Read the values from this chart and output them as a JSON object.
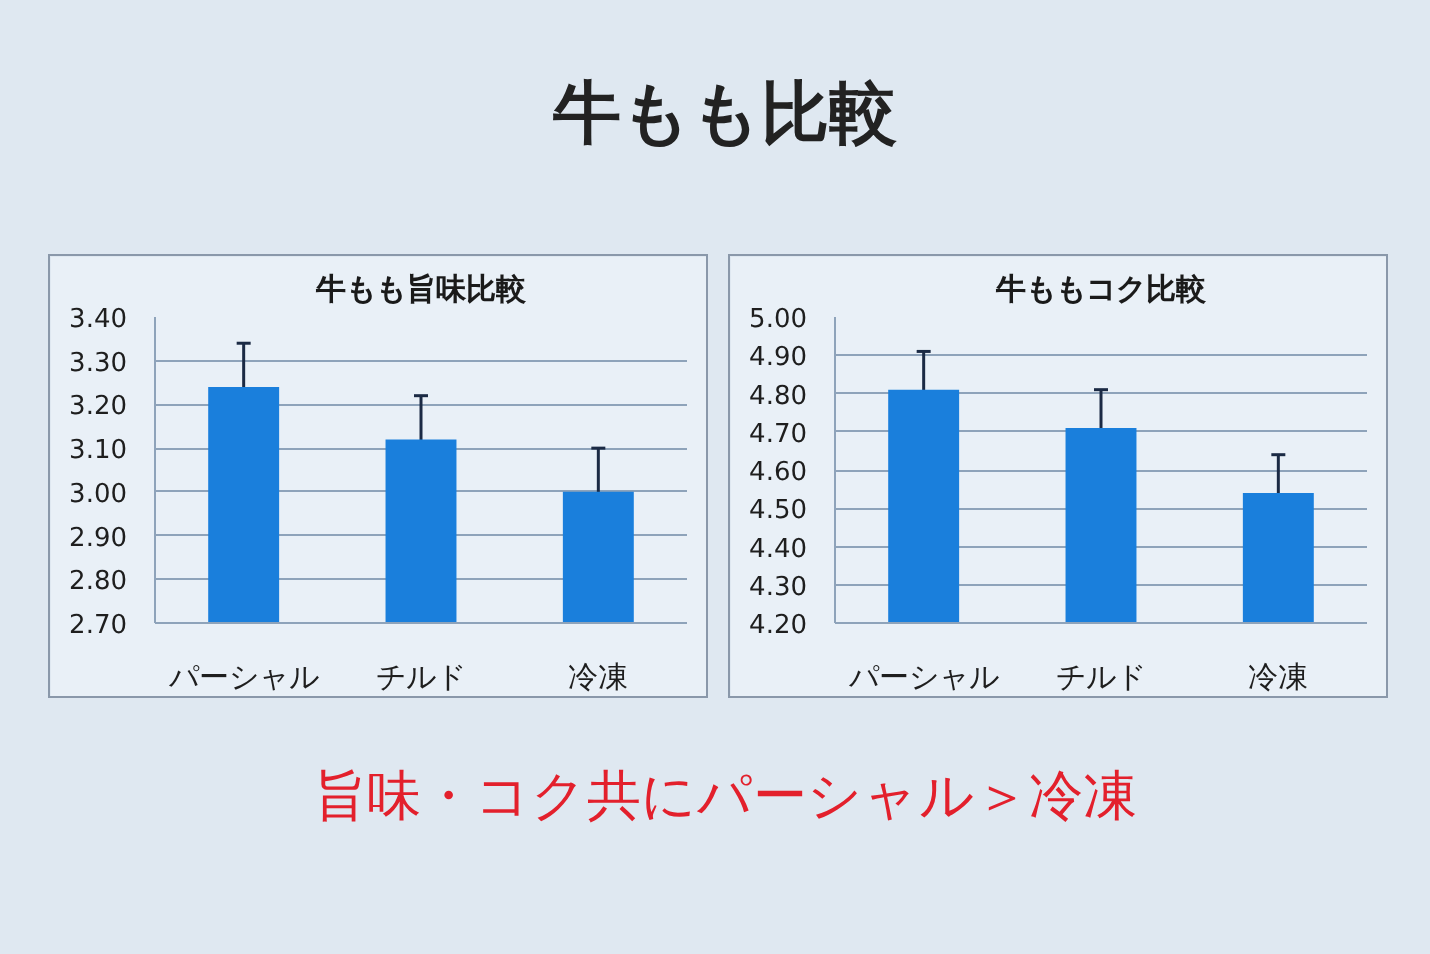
{
  "chart_data": [
    {
      "type": "other",
      "title": "牛もも比較"
    },
    {
      "type": "bar",
      "title": "牛もも旨味比較",
      "categories": [
        "パーシャル",
        "チルド",
        "冷凍"
      ],
      "values": [
        3.24,
        3.12,
        3.0
      ],
      "errors": [
        0.1,
        0.1,
        0.1
      ],
      "color": "#1a7fdc",
      "ylim": [
        2.7,
        3.4
      ],
      "yticks": [
        {
          "value": 2.7,
          "label": "2.70"
        },
        {
          "value": 2.8,
          "label": "2.80"
        },
        {
          "value": 2.9,
          "label": "2.90"
        },
        {
          "value": 3.0,
          "label": "3.00"
        },
        {
          "value": 3.1,
          "label": "3.10"
        },
        {
          "value": 3.2,
          "label": "3.20"
        },
        {
          "value": 3.3,
          "label": "3.30"
        },
        {
          "value": 3.4,
          "label": "3.40"
        }
      ],
      "grid": "y"
    },
    {
      "type": "bar",
      "title": "牛ももコク比較",
      "categories": [
        "パーシャル",
        "チルド",
        "冷凍"
      ],
      "values": [
        4.81,
        4.71,
        4.54
      ],
      "errors": [
        0.1,
        0.1,
        0.1
      ],
      "color": "#1a7fdc",
      "ylim": [
        4.2,
        5.0
      ],
      "yticks": [
        {
          "value": 4.2,
          "label": "4.20"
        },
        {
          "value": 4.3,
          "label": "4.30"
        },
        {
          "value": 4.4,
          "label": "4.40"
        },
        {
          "value": 4.5,
          "label": "4.50"
        },
        {
          "value": 4.6,
          "label": "4.60"
        },
        {
          "value": 4.7,
          "label": "4.70"
        },
        {
          "value": 4.8,
          "label": "4.80"
        },
        {
          "value": 4.9,
          "label": "4.90"
        },
        {
          "value": 5.0,
          "label": "5.00"
        }
      ],
      "grid": "y"
    },
    {
      "type": "other",
      "annotations": [
        "旨味・コク共にパーシャル＞冷凍"
      ]
    }
  ]
}
